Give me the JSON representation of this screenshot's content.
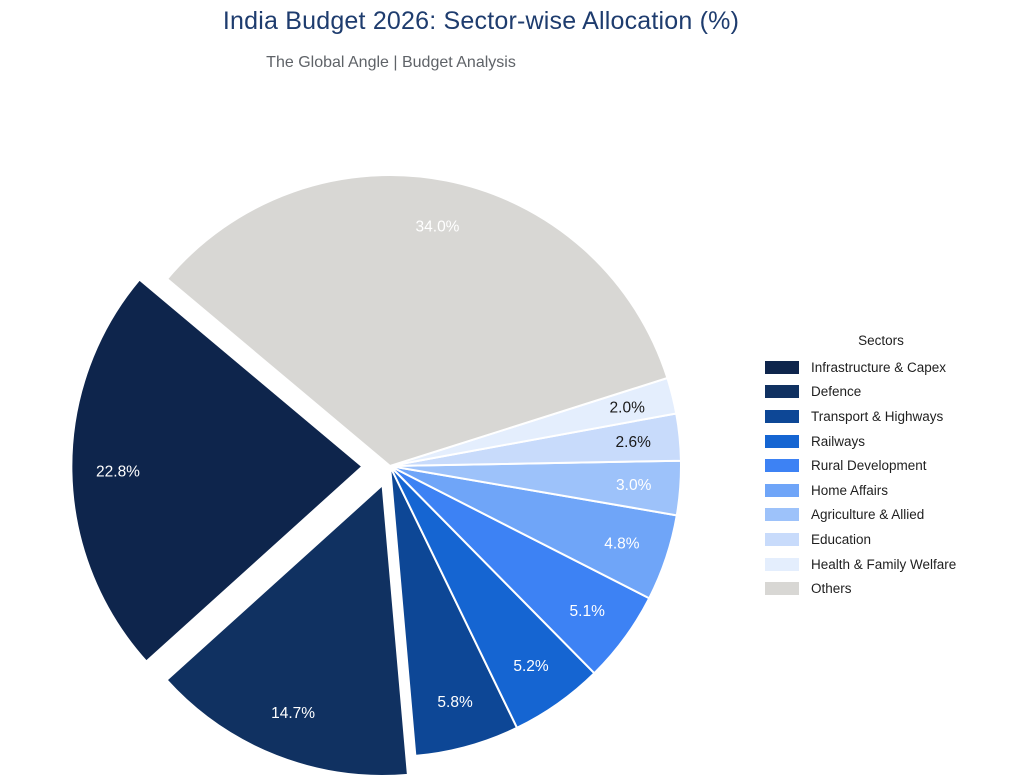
{
  "header": {
    "title": "India Budget 2026: Sector-wise Allocation (%)",
    "title_color": "#1e3c6e",
    "subtitle": "The Global Angle | Budget Analysis",
    "subtitle_color": "#5f6368"
  },
  "chart_data": {
    "type": "pie",
    "title": "India Budget 2026: Sector-wise Allocation (%)",
    "subtitle": "The Global Angle | Budget Analysis",
    "legend_title": "Sectors",
    "legend_position": "right",
    "start_angle_deg": 140,
    "direction": "counterclockwise",
    "label_distance": 0.84,
    "stroke_color": "#ffffff",
    "slices": [
      {
        "label": "Infrastructure & Capex",
        "value": 22.8,
        "pct_label": "22.8%",
        "color": "#0e254c",
        "text_color": "#ffffff",
        "explode": 0.095
      },
      {
        "label": "Defence",
        "value": 14.7,
        "pct_label": "14.7%",
        "color": "#103161",
        "text_color": "#ffffff",
        "explode": 0.07
      },
      {
        "label": "Transport & Highways",
        "value": 5.8,
        "pct_label": "5.8%",
        "color": "#0d4796",
        "text_color": "#ffffff",
        "explode": 0
      },
      {
        "label": "Railways",
        "value": 5.2,
        "pct_label": "5.2%",
        "color": "#1565d2",
        "text_color": "#ffffff",
        "explode": 0
      },
      {
        "label": "Rural Development",
        "value": 5.1,
        "pct_label": "5.1%",
        "color": "#3d82f4",
        "text_color": "#ffffff",
        "explode": 0
      },
      {
        "label": "Home Affairs",
        "value": 4.8,
        "pct_label": "4.8%",
        "color": "#6fa5f8",
        "text_color": "#ffffff",
        "explode": 0
      },
      {
        "label": "Agriculture & Allied",
        "value": 3.0,
        "pct_label": "3.0%",
        "color": "#9dc2fa",
        "text_color": "#ffffff",
        "explode": 0
      },
      {
        "label": "Education",
        "value": 2.6,
        "pct_label": "2.6%",
        "color": "#c8dbfb",
        "text_color": "#1a1a1a",
        "explode": 0
      },
      {
        "label": "Health & Family Welfare",
        "value": 2.0,
        "pct_label": "2.0%",
        "color": "#e4eefd",
        "text_color": "#1a1a1a",
        "explode": 0
      },
      {
        "label": "Others",
        "value": 34.0,
        "pct_label": "34.0%",
        "color": "#d8d7d4",
        "text_color": "#ffffff",
        "explode": 0
      }
    ]
  }
}
